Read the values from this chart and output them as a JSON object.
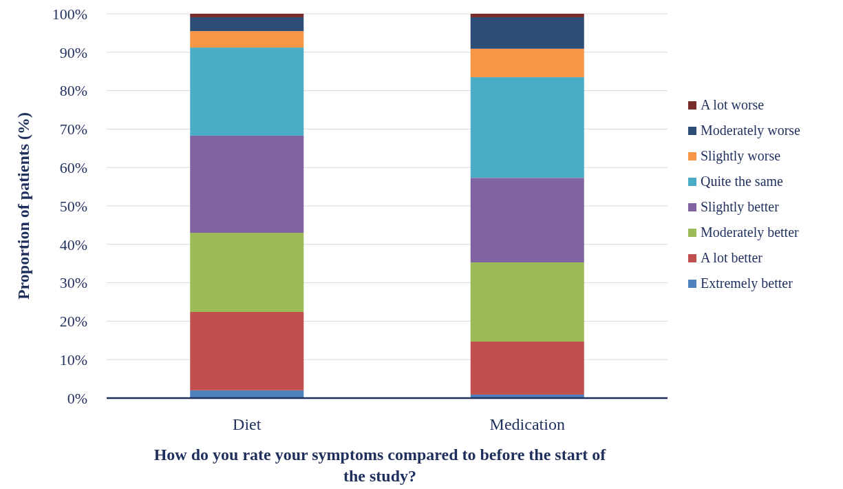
{
  "chart_data": {
    "type": "bar",
    "stacked": true,
    "ylabel": "Proportion of patients (%)",
    "xlabel": "How do you rate your symptoms compared to before the start of the study?",
    "categories": [
      "Diet",
      "Medication"
    ],
    "ylim": [
      0,
      100
    ],
    "yticks": [
      {
        "value": 0,
        "label": "0%"
      },
      {
        "value": 10,
        "label": "10%"
      },
      {
        "value": 20,
        "label": "20%"
      },
      {
        "value": 30,
        "label": "30%"
      },
      {
        "value": 40,
        "label": "40%"
      },
      {
        "value": 50,
        "label": "50%"
      },
      {
        "value": 60,
        "label": "60%"
      },
      {
        "value": 70,
        "label": "70%"
      },
      {
        "value": 80,
        "label": "80%"
      },
      {
        "value": 90,
        "label": "90%"
      },
      {
        "value": 100,
        "label": "100%"
      }
    ],
    "grid": "y",
    "legend": "right",
    "series": [
      {
        "name": "Extremely better",
        "color": "#4f81bd",
        "values": [
          2.0,
          0.9
        ]
      },
      {
        "name": "A lot better",
        "color": "#c0504d",
        "values": [
          20.4,
          13.8
        ]
      },
      {
        "name": "Moderately better",
        "color": "#9bbb59",
        "values": [
          20.6,
          20.6
        ]
      },
      {
        "name": "Slightly better",
        "color": "#8064a2",
        "values": [
          25.3,
          22.0
        ]
      },
      {
        "name": "Quite the same",
        "color": "#4bacc6",
        "values": [
          22.9,
          26.2
        ]
      },
      {
        "name": "Slightly worse",
        "color": "#f79646",
        "values": [
          4.3,
          7.4
        ]
      },
      {
        "name": "Moderately worse",
        "color": "#2c4d75",
        "values": [
          3.6,
          8.2
        ]
      },
      {
        "name": "A lot worse",
        "color": "#772c2a",
        "values": [
          0.9,
          0.9
        ]
      }
    ]
  }
}
